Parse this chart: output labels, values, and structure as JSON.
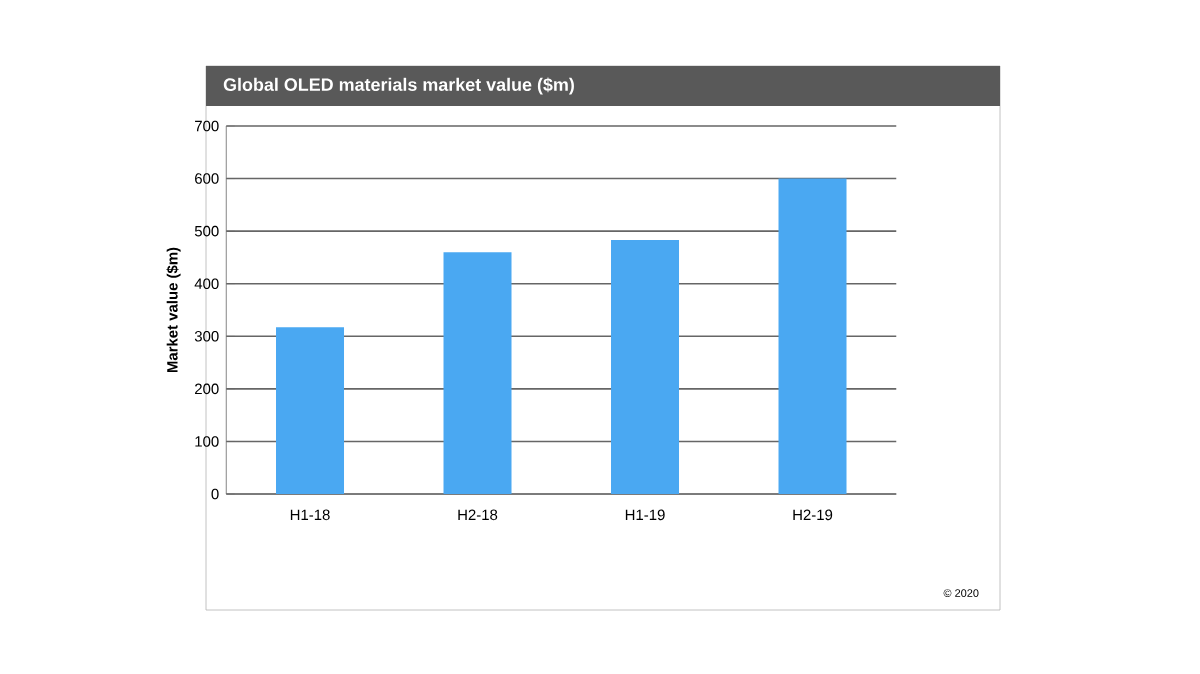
{
  "chart_data": {
    "type": "bar",
    "title": "Global OLED materials market value ($m)",
    "ylabel": "Market value ($m)",
    "categories": [
      "H1-18",
      "H2-18",
      "H1-19",
      "H2-19"
    ],
    "values": [
      317,
      460,
      483,
      600
    ],
    "color": "#4aa8f2",
    "ylim": [
      0,
      700
    ],
    "yticks": [
      0,
      100,
      200,
      300,
      400,
      500,
      600,
      700
    ],
    "grid": "y",
    "annotations": [
      "© 2020"
    ]
  }
}
